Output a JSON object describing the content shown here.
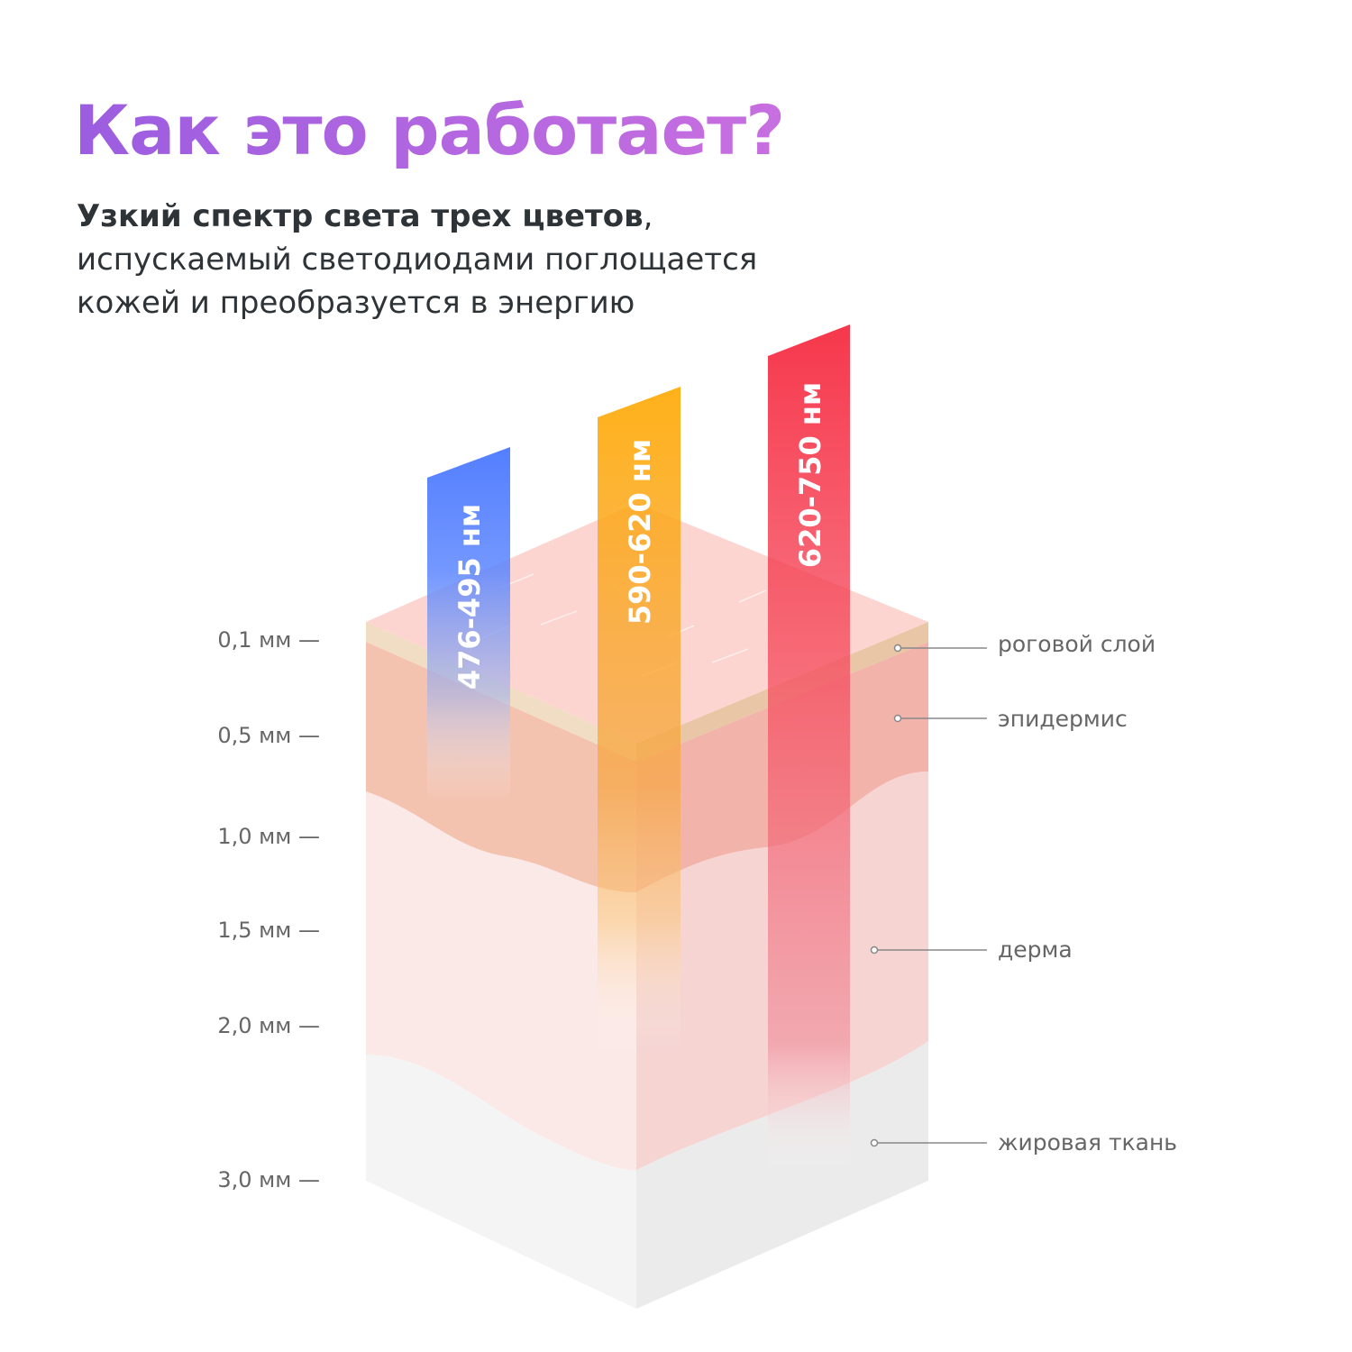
{
  "title": "Как это работает?",
  "subtitle": {
    "bold": "Узкий спектр света трех цветов",
    "line1_rest": ",",
    "line2": "испускаемый светодиодами поглощается",
    "line3": "кожей и преобразуется в энергию"
  },
  "depth_scale": [
    "0,1 мм —",
    "0,5 мм —",
    "1,0 мм —",
    "1,5 мм —",
    "2,0 мм —",
    "3,0 мм —"
  ],
  "layers": [
    "роговой слой",
    "эпидермис",
    "дерма",
    "жировая ткань"
  ],
  "beams": [
    {
      "label": "476-495 нм",
      "color": "#4a78ff"
    },
    {
      "label": "590-620 нм",
      "color": "#ffa800"
    },
    {
      "label": "620-750 нм",
      "color": "#f5142c"
    }
  ],
  "colors": {
    "title_from": "#9b5de0",
    "title_to": "#c86fe0",
    "text": "#2e3338"
  }
}
